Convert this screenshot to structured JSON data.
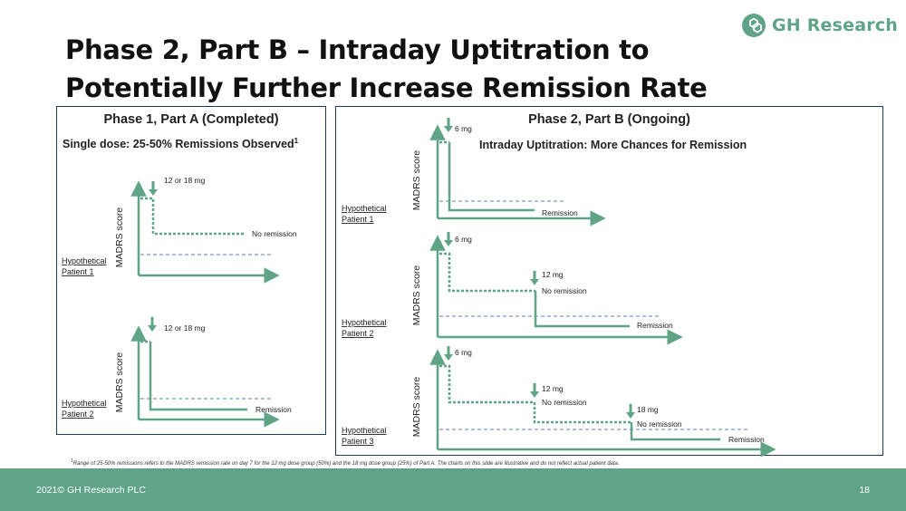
{
  "logo": {
    "text": "GH Research"
  },
  "title": {
    "line1": "Phase 2, Part B – Intraday Uptitration to",
    "line2": "Potentially Further Increase Remission Rate"
  },
  "panel1": {
    "title": "Phase 1, Part A (Completed)",
    "subtitle": "Single dose: 25-50% Remissions Observed",
    "subtitle_sup": "1",
    "chart1": {
      "patient_line1": "Hypothetical",
      "patient_line2": "Patient 1",
      "ylabel": "MADRS score",
      "dose": "12 or 18 mg",
      "outcome": "No remission"
    },
    "chart2": {
      "patient_line1": "Hypothetical",
      "patient_line2": "Patient 2",
      "ylabel": "MADRS score",
      "dose": "12 or 18 mg",
      "outcome": "Remission"
    }
  },
  "panel2": {
    "title": "Phase 2, Part B (Ongoing)",
    "subtitle": "Intraday Uptitration: More Chances for Remission",
    "chart1": {
      "patient_line1": "Hypothetical",
      "patient_line2": "Patient 1",
      "ylabel": "MADRS score",
      "dose1": "6 mg",
      "outcome": "Remission"
    },
    "chart2": {
      "patient_line1": "Hypothetical",
      "patient_line2": "Patient 2",
      "ylabel": "MADRS score",
      "dose1": "6 mg",
      "dose2": "12 mg",
      "mid_outcome": "No remission",
      "outcome": "Remission"
    },
    "chart3": {
      "patient_line1": "Hypothetical",
      "patient_line2": "Patient 3",
      "ylabel": "MADRS score",
      "dose1": "6 mg",
      "dose2": "12 mg",
      "mid_outcome1": "No remission",
      "dose3": "18 mg",
      "mid_outcome2": "No remission",
      "outcome": "Remission"
    }
  },
  "footnote": {
    "sup": "1",
    "text": "Range of 25-50% remissions refers to the MADRS remission rate on day 7 for the 12 mg dose group (50%) and the 18 mg dose group (25%) of Part A. The charts on this slide are illustrative and do not reflect actual patient data."
  },
  "footer": {
    "copyright": "2021© GH Research PLC",
    "page_number": "18"
  },
  "colors": {
    "brand_green": "#5fa487",
    "line_green": "#5fa487",
    "threshold_blue": "#5b7fb5",
    "panel_border": "#1f3b57"
  }
}
